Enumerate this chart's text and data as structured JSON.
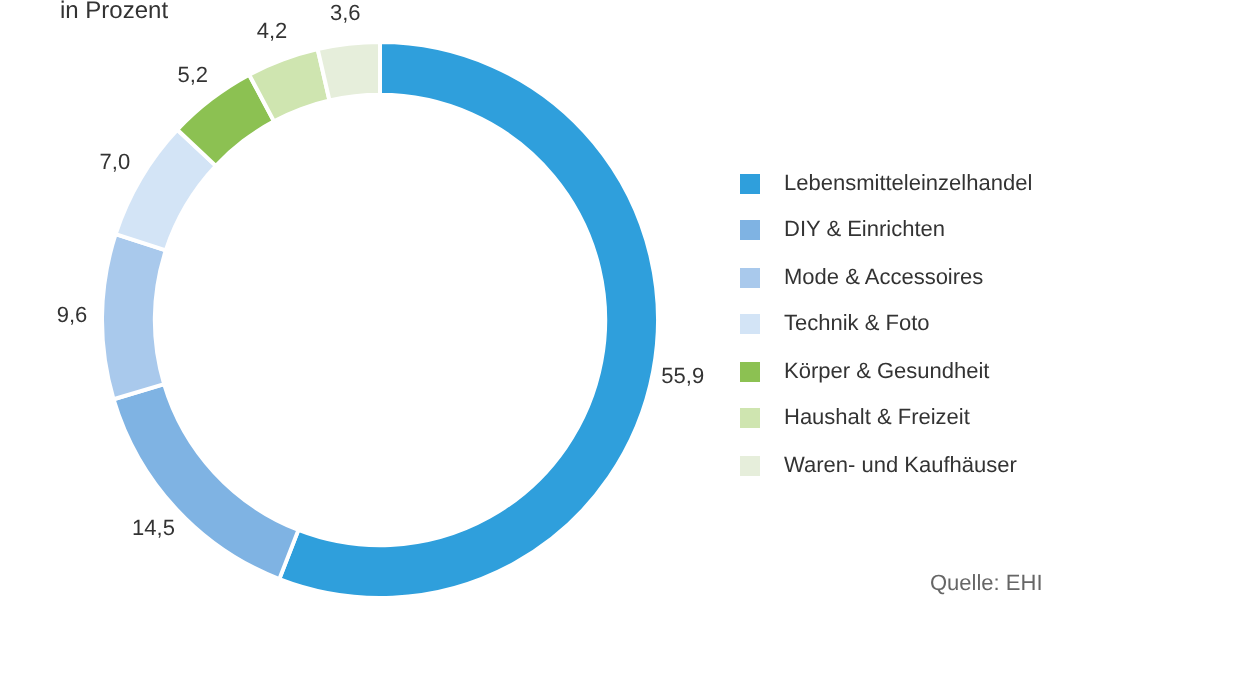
{
  "chart_data": {
    "type": "donut",
    "subtitle": "in Prozent",
    "categories": [
      "Lebensmitteleinzelhandel",
      "DIY & Einrichten",
      "Mode & Accessoires",
      "Technik & Foto",
      "Körper & Gesundheit",
      "Haushalt & Freizeit",
      "Waren- und Kaufhäuser"
    ],
    "values": [
      55.9,
      14.5,
      9.6,
      7.0,
      5.2,
      4.2,
      3.6
    ],
    "value_labels": [
      "55,9",
      "14,5",
      "9,6",
      "7,0",
      "5,2",
      "4,2",
      "3,6"
    ],
    "colors": [
      "#2f9fdc",
      "#7fb3e3",
      "#a9c9ec",
      "#d3e4f6",
      "#8cc152",
      "#cfe5b0",
      "#e6eedb"
    ],
    "legend": "right",
    "annotations": [
      "Quelle: EHI"
    ]
  }
}
